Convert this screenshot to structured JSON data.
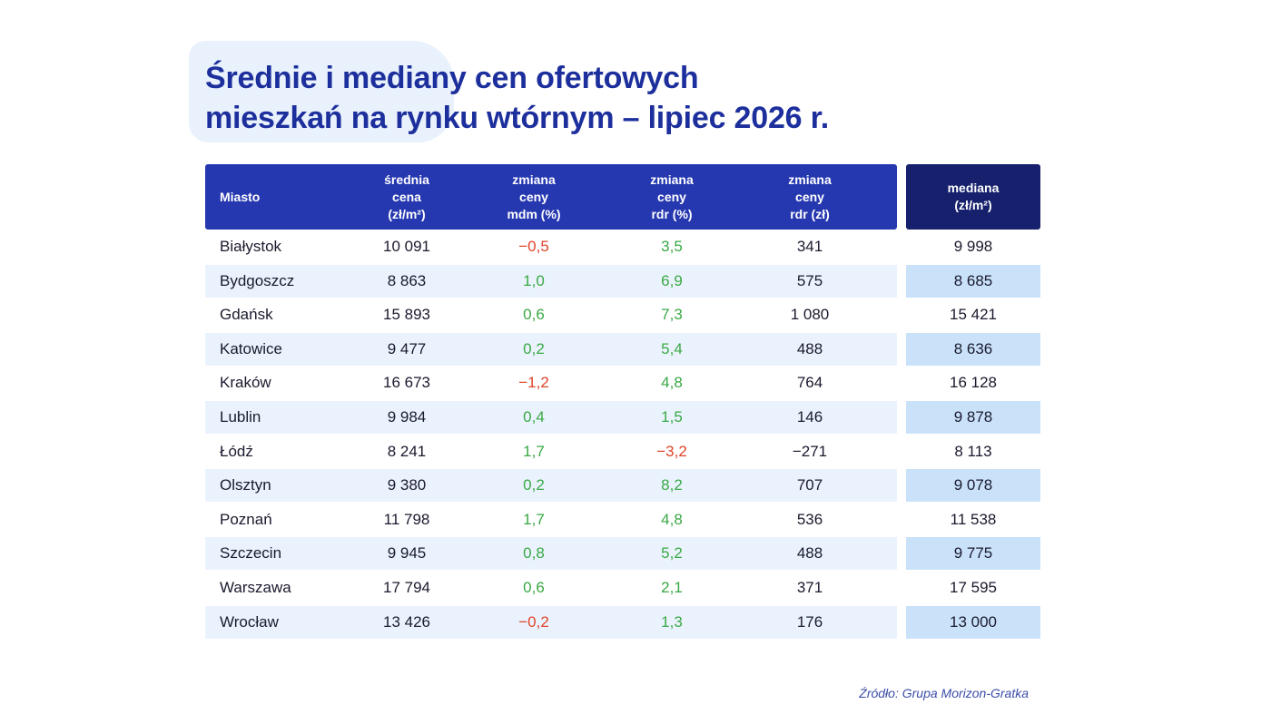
{
  "title": {
    "line1": "Średnie i mediany cen ofertowych",
    "line2": "mieszkań na rynku wtórnym – lipiec 2026 r."
  },
  "table": {
    "headers": {
      "city": "Miasto",
      "avg_price": "średnia\ncena\n(zł/m²)",
      "change_mdm": "zmiana\nceny\nmdm (%)",
      "change_rdr_pct": "zmiana\nceny\nrdr (%)",
      "change_rdr_zl": "zmiana\nceny\nrdr (zł)",
      "median": "mediana\n(zł/m²)"
    },
    "rows": [
      {
        "city": "Białystok",
        "avg_price": "10 091",
        "change_mdm": "−0,5",
        "change_rdr_pct": "3,5",
        "change_rdr_zl": "341",
        "median": "9 998"
      },
      {
        "city": "Bydgoszcz",
        "avg_price": "8 863",
        "change_mdm": "1,0",
        "change_rdr_pct": "6,9",
        "change_rdr_zl": "575",
        "median": "8 685"
      },
      {
        "city": "Gdańsk",
        "avg_price": "15 893",
        "change_mdm": "0,6",
        "change_rdr_pct": "7,3",
        "change_rdr_zl": "1 080",
        "median": "15 421"
      },
      {
        "city": "Katowice",
        "avg_price": "9 477",
        "change_mdm": "0,2",
        "change_rdr_pct": "5,4",
        "change_rdr_zl": "488",
        "median": "8 636"
      },
      {
        "city": "Kraków",
        "avg_price": "16 673",
        "change_mdm": "−1,2",
        "change_rdr_pct": "4,8",
        "change_rdr_zl": "764",
        "median": "16 128"
      },
      {
        "city": "Lublin",
        "avg_price": "9 984",
        "change_mdm": "0,4",
        "change_rdr_pct": "1,5",
        "change_rdr_zl": "146",
        "median": "9 878"
      },
      {
        "city": "Łódź",
        "avg_price": "8 241",
        "change_mdm": "1,7",
        "change_rdr_pct": "−3,2",
        "change_rdr_zl": "−271",
        "median": "8 113"
      },
      {
        "city": "Olsztyn",
        "avg_price": "9 380",
        "change_mdm": "0,2",
        "change_rdr_pct": "8,2",
        "change_rdr_zl": "707",
        "median": "9 078"
      },
      {
        "city": "Poznań",
        "avg_price": "11 798",
        "change_mdm": "1,7",
        "change_rdr_pct": "4,8",
        "change_rdr_zl": "536",
        "median": "11 538"
      },
      {
        "city": "Szczecin",
        "avg_price": "9 945",
        "change_mdm": "0,8",
        "change_rdr_pct": "5,2",
        "change_rdr_zl": "488",
        "median": "9 775"
      },
      {
        "city": "Warszawa",
        "avg_price": "17 794",
        "change_mdm": "0,6",
        "change_rdr_pct": "2,1",
        "change_rdr_zl": "371",
        "median": "17 595"
      },
      {
        "city": "Wrocław",
        "avg_price": "13 426",
        "change_mdm": "−0,2",
        "change_rdr_pct": "1,3",
        "change_rdr_zl": "176",
        "median": "13 000"
      }
    ]
  },
  "colors": {
    "title": "#1d2f9c",
    "header_bg": "#2638b0",
    "median_header_bg": "#16206c",
    "positive": "#3aa845",
    "negative": "#e0442a",
    "row_alt": "#eaf3fd",
    "median_alt": "#c9e2fa"
  },
  "source": "Źródło: Grupa Morizon-Gratka",
  "chart_data": {
    "type": "table",
    "title": "Średnie i mediany cen ofertowych mieszkań na rynku wtórnym – lipiec 2026 r.",
    "columns": [
      "Miasto",
      "średnia cena (zł/m²)",
      "zmiana ceny mdm (%)",
      "zmiana ceny rdr (%)",
      "zmiana ceny rdr (zł)",
      "mediana (zł/m²)"
    ],
    "rows": [
      [
        "Białystok",
        10091,
        -0.5,
        3.5,
        341,
        9998
      ],
      [
        "Bydgoszcz",
        8863,
        1.0,
        6.9,
        575,
        8685
      ],
      [
        "Gdańsk",
        15893,
        0.6,
        7.3,
        1080,
        15421
      ],
      [
        "Katowice",
        9477,
        0.2,
        5.4,
        488,
        8636
      ],
      [
        "Kraków",
        16673,
        -1.2,
        4.8,
        764,
        16128
      ],
      [
        "Lublin",
        9984,
        0.4,
        1.5,
        146,
        9878
      ],
      [
        "Łódź",
        8241,
        1.7,
        -3.2,
        -271,
        8113
      ],
      [
        "Olsztyn",
        9380,
        0.2,
        8.2,
        707,
        9078
      ],
      [
        "Poznań",
        11798,
        1.7,
        4.8,
        536,
        11538
      ],
      [
        "Szczecin",
        9945,
        0.8,
        5.2,
        488,
        9775
      ],
      [
        "Warszawa",
        17794,
        0.6,
        2.1,
        371,
        17595
      ],
      [
        "Wrocław",
        13426,
        -0.2,
        1.3,
        176,
        13000
      ]
    ]
  }
}
